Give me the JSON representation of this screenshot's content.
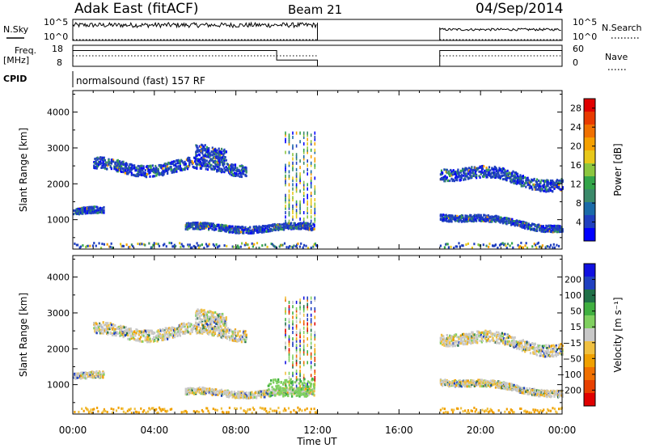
{
  "header": {
    "station": "Adak East (fitACF)",
    "beam": "Beam 21",
    "date": "04/Sep/2014"
  },
  "panels": {
    "nsky": {
      "left_label": "N.Sky",
      "right_label": "N.Search",
      "left_ticks": [
        "10^5",
        "10^0"
      ],
      "right_ticks": [
        "10^5",
        "10^0"
      ]
    },
    "freq": {
      "left_label_1": "Freq.",
      "left_label_2": "[MHz]",
      "right_label": "Nave",
      "left_ticks": [
        "18",
        "8"
      ],
      "right_ticks": [
        "60",
        "0"
      ]
    },
    "cpid": {
      "label": "CPID",
      "text": "normalsound (fast) 157 RF"
    }
  },
  "colors": {
    "power_scale": [
      "#0000ff",
      "#1f3fbf",
      "#1a6aa8",
      "#3b8a6a",
      "#33a54a",
      "#8cc63f",
      "#e8c81a",
      "#f5a000",
      "#f07000",
      "#e83a00",
      "#e00000"
    ],
    "velocity_scale": [
      "#1010e0",
      "#2040c0",
      "#207048",
      "#40b040",
      "#80d060",
      "#c8c8c8",
      "#f0c040",
      "#f0a000",
      "#f07000",
      "#e84000",
      "#e00000"
    ],
    "grey": "#c8c8c8"
  },
  "chart_data": [
    {
      "type": "heatmap",
      "panel": "power",
      "xlabel": "Time UT",
      "ylabel": "Slant Range [km]",
      "x_ticks": [
        "00:00",
        "04:00",
        "08:00",
        "12:00",
        "16:00",
        "20:00",
        "00:00"
      ],
      "x_range_hours": [
        0,
        24
      ],
      "y_ticks": [
        1000,
        2000,
        3000,
        4000
      ],
      "ylim": [
        180,
        4600
      ],
      "colorbar_label": "Power [dB]",
      "colorbar_ticks": [
        4,
        8,
        12,
        16,
        20,
        24,
        28
      ],
      "colorbar_range": [
        0,
        30
      ],
      "data_gaps_hours": [
        [
          12,
          18
        ]
      ],
      "echo_bands": [
        {
          "t_start": 1.0,
          "t_end": 8.5,
          "range_km": 2500,
          "level": 6
        },
        {
          "t_start": 6.0,
          "t_end": 7.5,
          "range_km": 2850,
          "level": 8
        },
        {
          "t_start": 5.5,
          "t_end": 11.8,
          "range_km": 800,
          "level": 7
        },
        {
          "t_start": 0.0,
          "t_end": 1.5,
          "range_km": 1250,
          "level": 6
        },
        {
          "t_start": 18.0,
          "t_end": 24.0,
          "range_km": 2400,
          "level": 6
        },
        {
          "t_start": 18.0,
          "t_end": 24.0,
          "range_km": 1150,
          "level": 6
        }
      ]
    },
    {
      "type": "heatmap",
      "panel": "velocity",
      "xlabel": "Time UT",
      "ylabel": "Slant Range [km]",
      "x_ticks": [
        "00:00",
        "04:00",
        "08:00",
        "12:00",
        "16:00",
        "20:00",
        "00:00"
      ],
      "x_range_hours": [
        0,
        24
      ],
      "y_ticks": [
        1000,
        2000,
        3000,
        4000
      ],
      "ylim": [
        180,
        4600
      ],
      "colorbar_label": "Velocity [m s⁻¹]",
      "colorbar_ticks": [
        200,
        100,
        50,
        15,
        -15,
        -50,
        -100,
        -200
      ],
      "data_gaps_hours": [
        [
          12,
          18
        ]
      ]
    }
  ],
  "nsky_series": {
    "nsky_level_1": 0.7,
    "nsky_level_2": 0.2,
    "freq_level": 0.75,
    "freq_level_after_10h": 0.3,
    "nave_level": 0.5,
    "segments_hours": [
      [
        0,
        12
      ],
      [
        18,
        24
      ]
    ]
  }
}
